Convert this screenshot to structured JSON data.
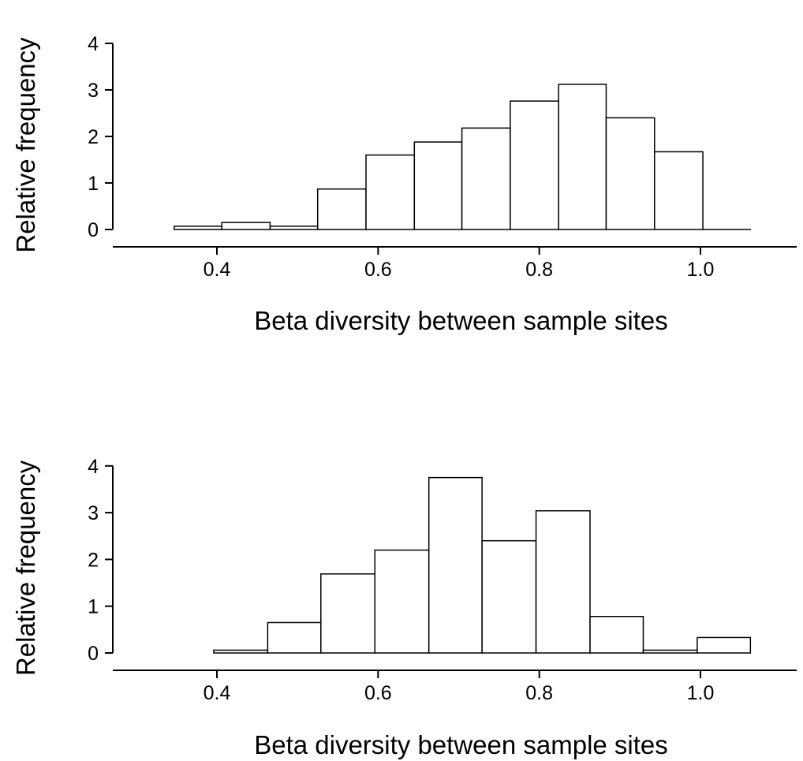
{
  "chart_data": [
    {
      "type": "bar",
      "xlabel": "Beta diversity between sample sites",
      "ylabel": "Relative frequency",
      "xlim": [
        0.27,
        1.16
      ],
      "ylim": [
        0,
        4
      ],
      "xticks": [
        0.4,
        0.6,
        0.8,
        1.0
      ],
      "xtick_labels": [
        "0.4",
        "0.6",
        "0.8",
        "1.0"
      ],
      "yticks": [
        0,
        1,
        2,
        3,
        4
      ],
      "ytick_labels": [
        "0",
        "1",
        "2",
        "3",
        "4"
      ],
      "grid": false,
      "bins": [
        {
          "start": 0.347,
          "end": 0.406,
          "value": 0.07
        },
        {
          "start": 0.406,
          "end": 0.466,
          "value": 0.15
        },
        {
          "start": 0.466,
          "end": 0.525,
          "value": 0.07
        },
        {
          "start": 0.525,
          "end": 0.585,
          "value": 0.87
        },
        {
          "start": 0.585,
          "end": 0.645,
          "value": 1.6
        },
        {
          "start": 0.645,
          "end": 0.704,
          "value": 1.88
        },
        {
          "start": 0.704,
          "end": 0.764,
          "value": 2.18
        },
        {
          "start": 0.764,
          "end": 0.824,
          "value": 2.76
        },
        {
          "start": 0.824,
          "end": 0.883,
          "value": 3.12
        },
        {
          "start": 0.883,
          "end": 0.943,
          "value": 2.4
        },
        {
          "start": 0.943,
          "end": 1.003,
          "value": 1.67
        },
        {
          "start": 1.003,
          "end": 1.062,
          "value": 0.0
        }
      ]
    },
    {
      "type": "bar",
      "xlabel": "Beta diversity between sample sites",
      "ylabel": "Relative frequency",
      "xlim": [
        0.27,
        1.16
      ],
      "ylim": [
        0,
        4
      ],
      "xticks": [
        0.4,
        0.6,
        0.8,
        1.0
      ],
      "xtick_labels": [
        "0.4",
        "0.6",
        "0.8",
        "1.0"
      ],
      "yticks": [
        0,
        1,
        2,
        3,
        4
      ],
      "ytick_labels": [
        "0",
        "1",
        "2",
        "3",
        "4"
      ],
      "grid": false,
      "bins": [
        {
          "start": 0.396,
          "end": 0.463,
          "value": 0.06
        },
        {
          "start": 0.463,
          "end": 0.529,
          "value": 0.65
        },
        {
          "start": 0.529,
          "end": 0.596,
          "value": 1.69
        },
        {
          "start": 0.596,
          "end": 0.663,
          "value": 2.2
        },
        {
          "start": 0.663,
          "end": 0.729,
          "value": 3.75
        },
        {
          "start": 0.729,
          "end": 0.796,
          "value": 2.4
        },
        {
          "start": 0.796,
          "end": 0.863,
          "value": 3.04
        },
        {
          "start": 0.863,
          "end": 0.929,
          "value": 0.78
        },
        {
          "start": 0.929,
          "end": 0.996,
          "value": 0.06
        },
        {
          "start": 0.996,
          "end": 1.062,
          "value": 0.33
        }
      ]
    }
  ]
}
